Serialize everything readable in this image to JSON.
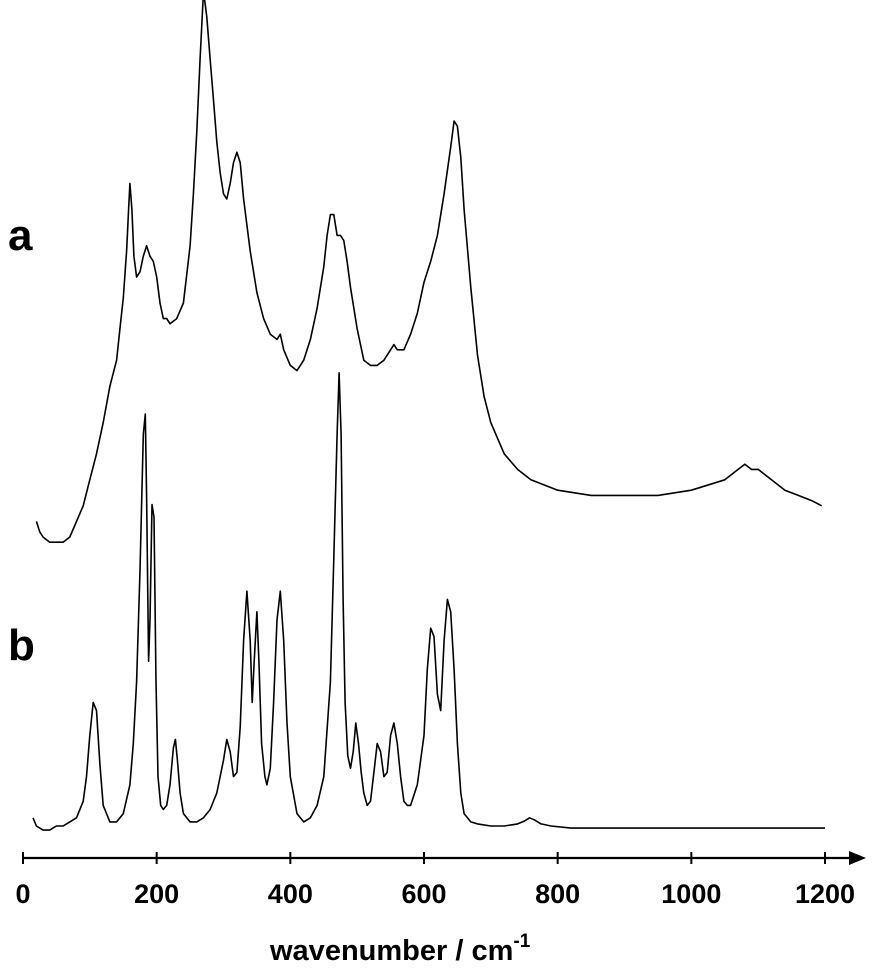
{
  "chart_data": {
    "type": "line",
    "xlabel": "wavenumber  / cm",
    "xlabel_sup": "-1",
    "xlim": [
      0,
      1200
    ],
    "x_ticks": [
      0,
      200,
      400,
      600,
      800,
      1000,
      1200
    ],
    "x_tick_labels": [
      "0",
      "200",
      "400",
      "600",
      "800",
      "1000",
      "1200"
    ],
    "yaxis_shown": false,
    "grid": false,
    "layout": "vertically offset traces",
    "series": [
      {
        "label": "a",
        "x": [
          20,
          25,
          30,
          40,
          50,
          60,
          70,
          80,
          90,
          100,
          110,
          120,
          130,
          140,
          145,
          150,
          155,
          158,
          160,
          163,
          166,
          170,
          175,
          180,
          185,
          190,
          195,
          200,
          205,
          210,
          215,
          220,
          230,
          240,
          250,
          255,
          260,
          265,
          270,
          275,
          280,
          285,
          290,
          295,
          300,
          305,
          310,
          315,
          320,
          325,
          330,
          340,
          350,
          360,
          370,
          380,
          385,
          390,
          400,
          410,
          420,
          430,
          440,
          450,
          455,
          460,
          465,
          470,
          475,
          480,
          485,
          490,
          500,
          510,
          520,
          530,
          540,
          550,
          555,
          560,
          570,
          580,
          590,
          600,
          610,
          620,
          630,
          640,
          645,
          650,
          655,
          660,
          670,
          680,
          690,
          700,
          720,
          740,
          760,
          780,
          800,
          850,
          900,
          950,
          1000,
          1050,
          1070,
          1080,
          1090,
          1100,
          1120,
          1140,
          1160,
          1180,
          1195
        ],
        "y": [
          0.03,
          0.01,
          0.0,
          -0.01,
          -0.01,
          -0.01,
          0.0,
          0.03,
          0.06,
          0.11,
          0.16,
          0.22,
          0.29,
          0.34,
          0.4,
          0.46,
          0.55,
          0.63,
          0.68,
          0.63,
          0.54,
          0.5,
          0.51,
          0.54,
          0.56,
          0.54,
          0.53,
          0.5,
          0.45,
          0.42,
          0.42,
          0.41,
          0.42,
          0.45,
          0.56,
          0.66,
          0.78,
          0.92,
          1.05,
          1.0,
          0.92,
          0.84,
          0.76,
          0.7,
          0.66,
          0.65,
          0.68,
          0.72,
          0.74,
          0.72,
          0.65,
          0.55,
          0.47,
          0.42,
          0.39,
          0.38,
          0.39,
          0.36,
          0.33,
          0.32,
          0.34,
          0.38,
          0.44,
          0.52,
          0.58,
          0.62,
          0.62,
          0.58,
          0.58,
          0.57,
          0.53,
          0.48,
          0.4,
          0.34,
          0.33,
          0.33,
          0.34,
          0.36,
          0.37,
          0.36,
          0.36,
          0.39,
          0.43,
          0.49,
          0.53,
          0.58,
          0.66,
          0.75,
          0.8,
          0.79,
          0.73,
          0.63,
          0.48,
          0.35,
          0.27,
          0.22,
          0.16,
          0.13,
          0.11,
          0.1,
          0.09,
          0.08,
          0.08,
          0.08,
          0.09,
          0.11,
          0.13,
          0.14,
          0.13,
          0.13,
          0.11,
          0.09,
          0.08,
          0.07,
          0.06
        ]
      },
      {
        "label": "b",
        "x": [
          15,
          20,
          30,
          40,
          50,
          60,
          70,
          80,
          90,
          95,
          100,
          105,
          110,
          115,
          120,
          130,
          140,
          150,
          160,
          165,
          170,
          175,
          180,
          183,
          185,
          188,
          190,
          193,
          196,
          199,
          202,
          206,
          210,
          215,
          220,
          225,
          228,
          231,
          235,
          240,
          250,
          260,
          270,
          280,
          290,
          300,
          305,
          310,
          315,
          320,
          325,
          330,
          335,
          340,
          343,
          346,
          350,
          353,
          357,
          362,
          365,
          370,
          375,
          380,
          385,
          390,
          395,
          400,
          410,
          420,
          430,
          440,
          450,
          460,
          465,
          470,
          473,
          476,
          479,
          482,
          486,
          490,
          494,
          498,
          502,
          506,
          510,
          515,
          520,
          525,
          530,
          535,
          540,
          545,
          550,
          555,
          560,
          565,
          570,
          575,
          580,
          590,
          600,
          605,
          610,
          615,
          620,
          625,
          630,
          635,
          640,
          645,
          650,
          655,
          660,
          670,
          680,
          700,
          720,
          740,
          750,
          758,
          765,
          775,
          790,
          820,
          860,
          900,
          1000,
          1100,
          1200
        ],
        "y": [
          0.02,
          0.0,
          -0.01,
          -0.01,
          0.0,
          0.0,
          0.01,
          0.02,
          0.06,
          0.12,
          0.22,
          0.3,
          0.28,
          0.15,
          0.05,
          0.01,
          0.01,
          0.03,
          0.1,
          0.2,
          0.35,
          0.62,
          0.95,
          1.0,
          0.8,
          0.4,
          0.5,
          0.78,
          0.75,
          0.35,
          0.12,
          0.05,
          0.04,
          0.05,
          0.1,
          0.19,
          0.21,
          0.16,
          0.08,
          0.03,
          0.01,
          0.01,
          0.02,
          0.04,
          0.08,
          0.16,
          0.21,
          0.18,
          0.12,
          0.13,
          0.24,
          0.45,
          0.57,
          0.45,
          0.3,
          0.4,
          0.52,
          0.4,
          0.2,
          0.12,
          0.1,
          0.14,
          0.3,
          0.5,
          0.57,
          0.45,
          0.25,
          0.12,
          0.03,
          0.01,
          0.02,
          0.05,
          0.12,
          0.35,
          0.65,
          0.95,
          1.1,
          0.95,
          0.55,
          0.3,
          0.17,
          0.14,
          0.18,
          0.25,
          0.2,
          0.13,
          0.08,
          0.05,
          0.06,
          0.13,
          0.2,
          0.18,
          0.12,
          0.13,
          0.22,
          0.25,
          0.2,
          0.12,
          0.06,
          0.05,
          0.05,
          0.1,
          0.22,
          0.38,
          0.48,
          0.46,
          0.32,
          0.28,
          0.45,
          0.55,
          0.52,
          0.38,
          0.2,
          0.08,
          0.03,
          0.01,
          0.005,
          0.0,
          0.0,
          0.005,
          0.012,
          0.02,
          0.015,
          0.005,
          0.0,
          -0.005,
          -0.005,
          -0.005,
          -0.005,
          -0.005,
          -0.005
        ]
      }
    ]
  }
}
